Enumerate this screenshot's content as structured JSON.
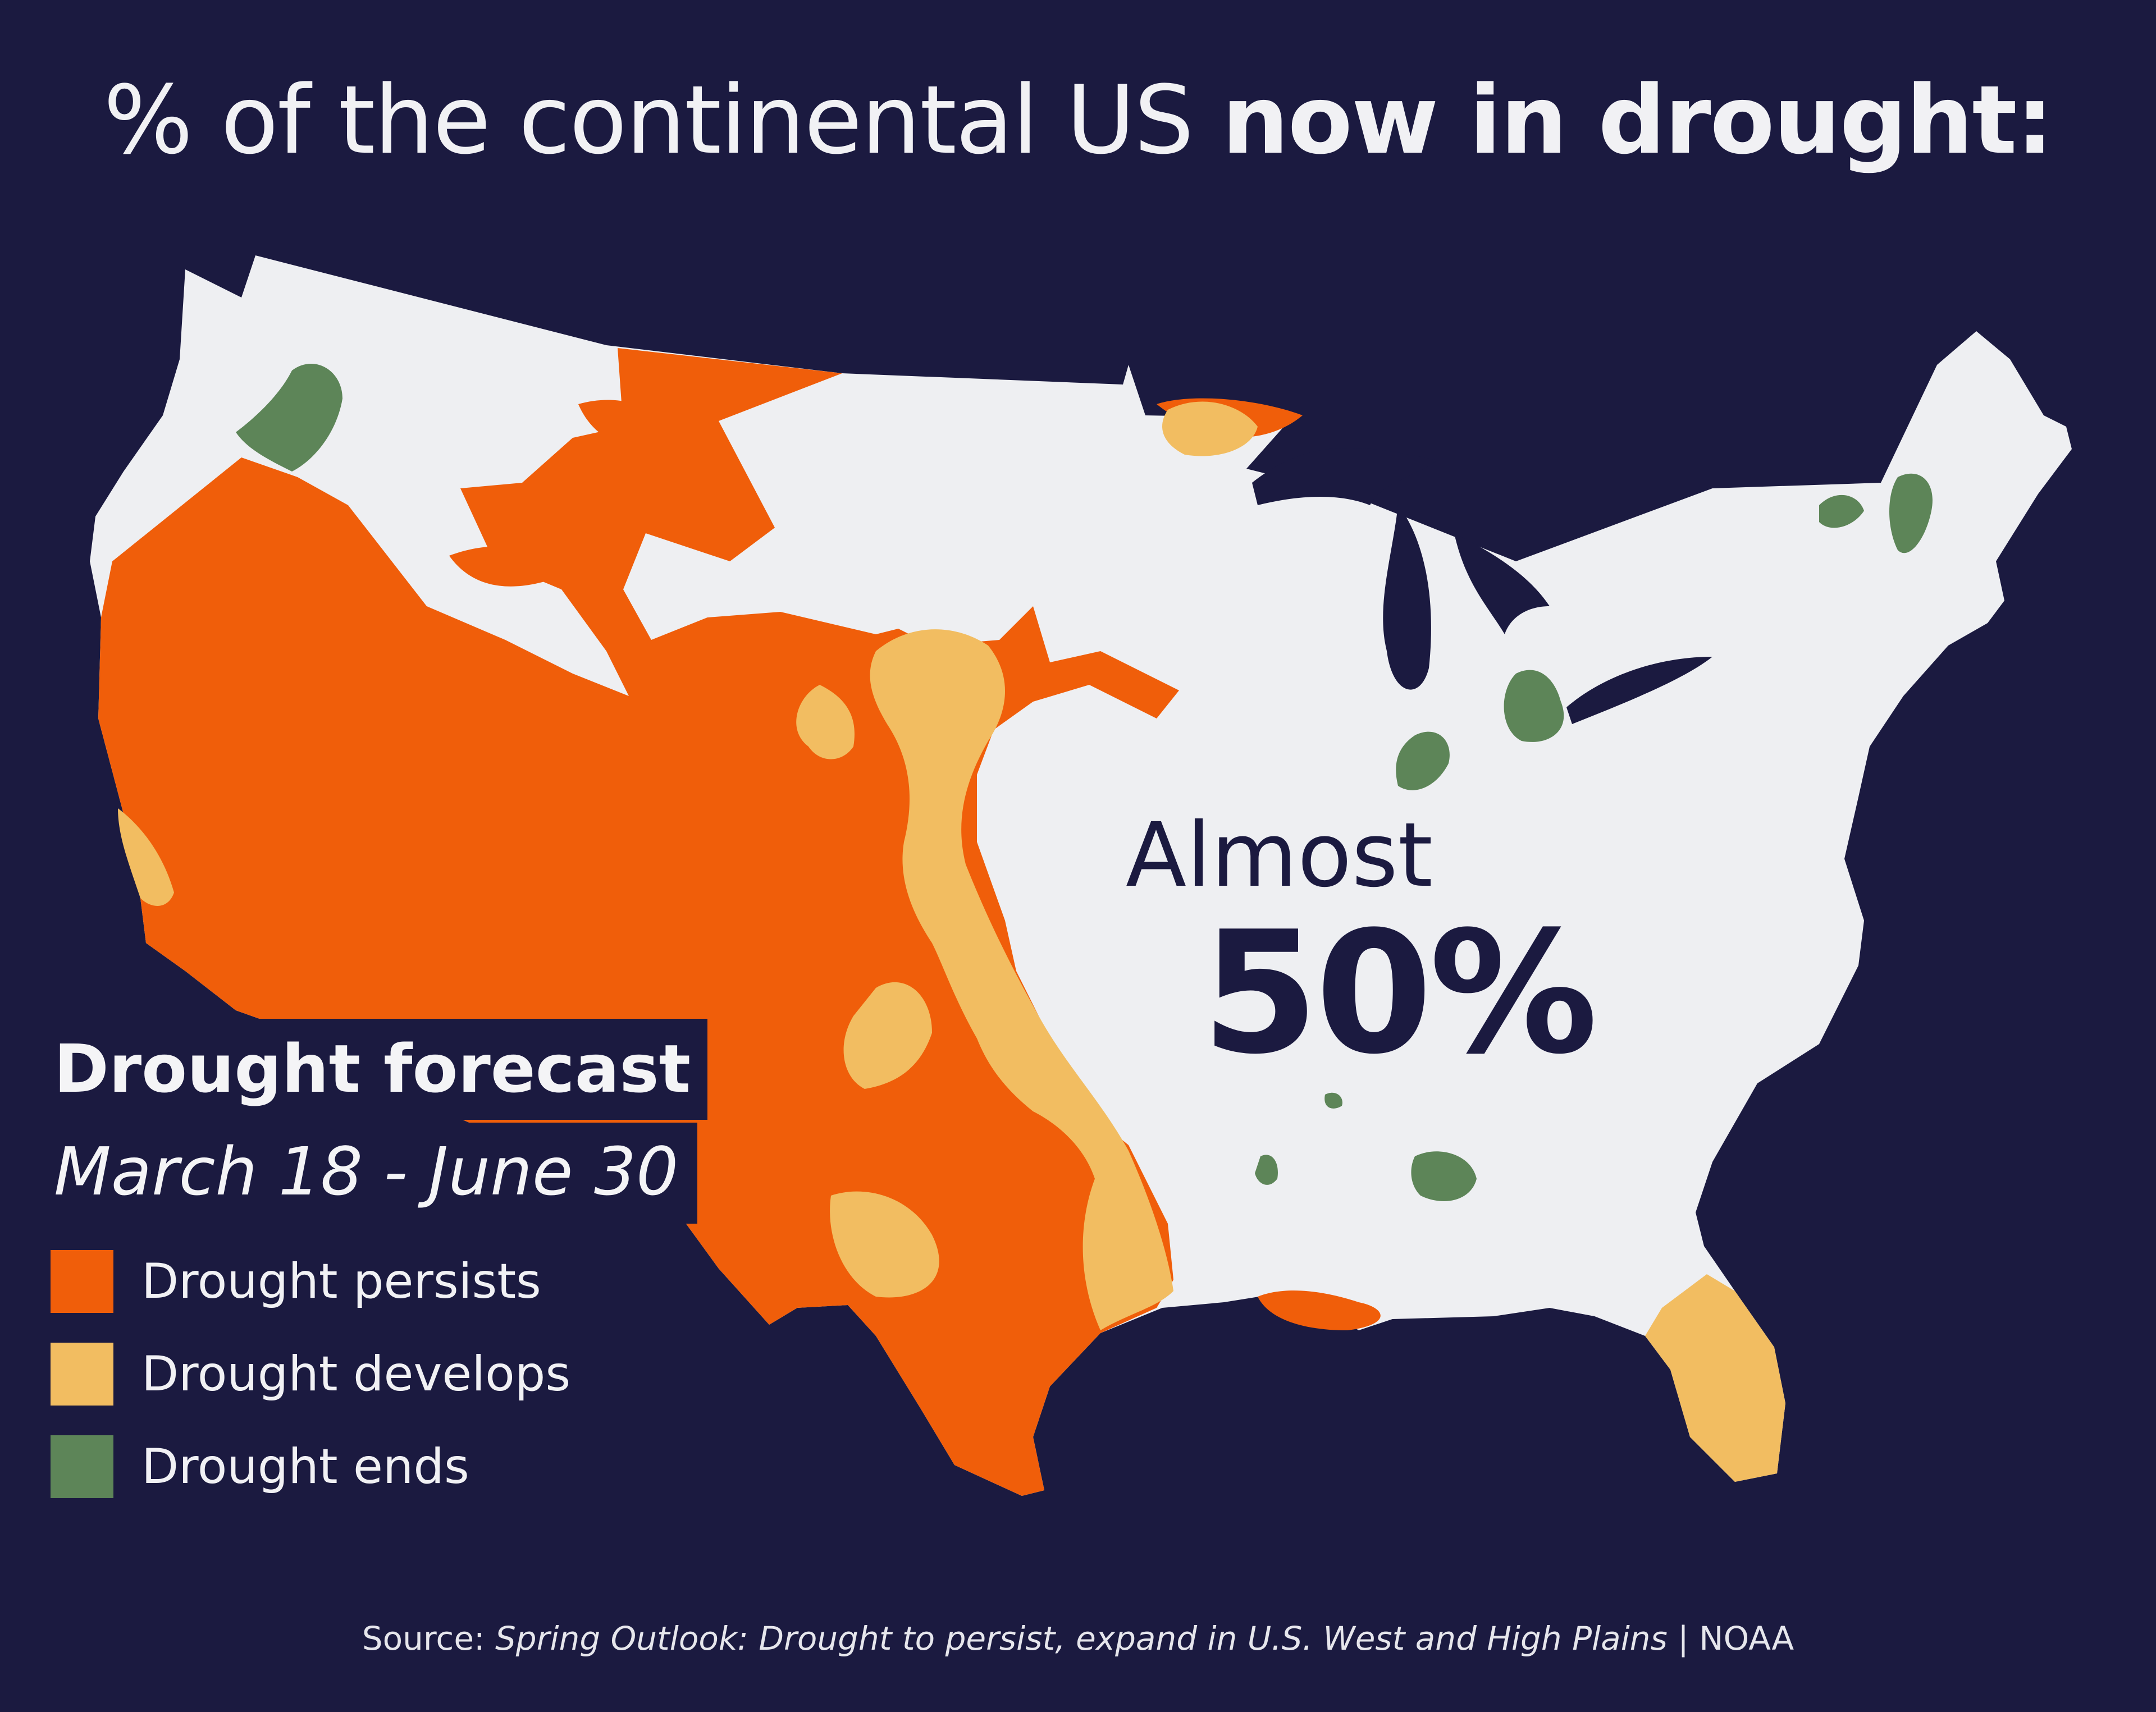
{
  "title": {
    "prefix": "% of the continental US ",
    "bold": "now in drought:"
  },
  "callout": {
    "word": "Almost",
    "value": "50%"
  },
  "forecast": {
    "title": "Drought forecast",
    "range": "March 18 - June 30"
  },
  "legend": [
    {
      "label": "Drought persists",
      "color": "#f05e0a"
    },
    {
      "label": "Drought develops",
      "color": "#f2bd61"
    },
    {
      "label": "Drought ends",
      "color": "#5d8558"
    }
  ],
  "source": {
    "prefix": "Source: ",
    "title": "Spring Outlook: Drought to persist, expand in U.S. West and High Plains",
    "suffix": " | NOAA"
  },
  "colors": {
    "background": "#1b1a40",
    "land": "#eeeff2",
    "persists": "#f05e0a",
    "develops": "#f2bd61",
    "ends": "#5d8558",
    "water": "#1b1a40"
  }
}
